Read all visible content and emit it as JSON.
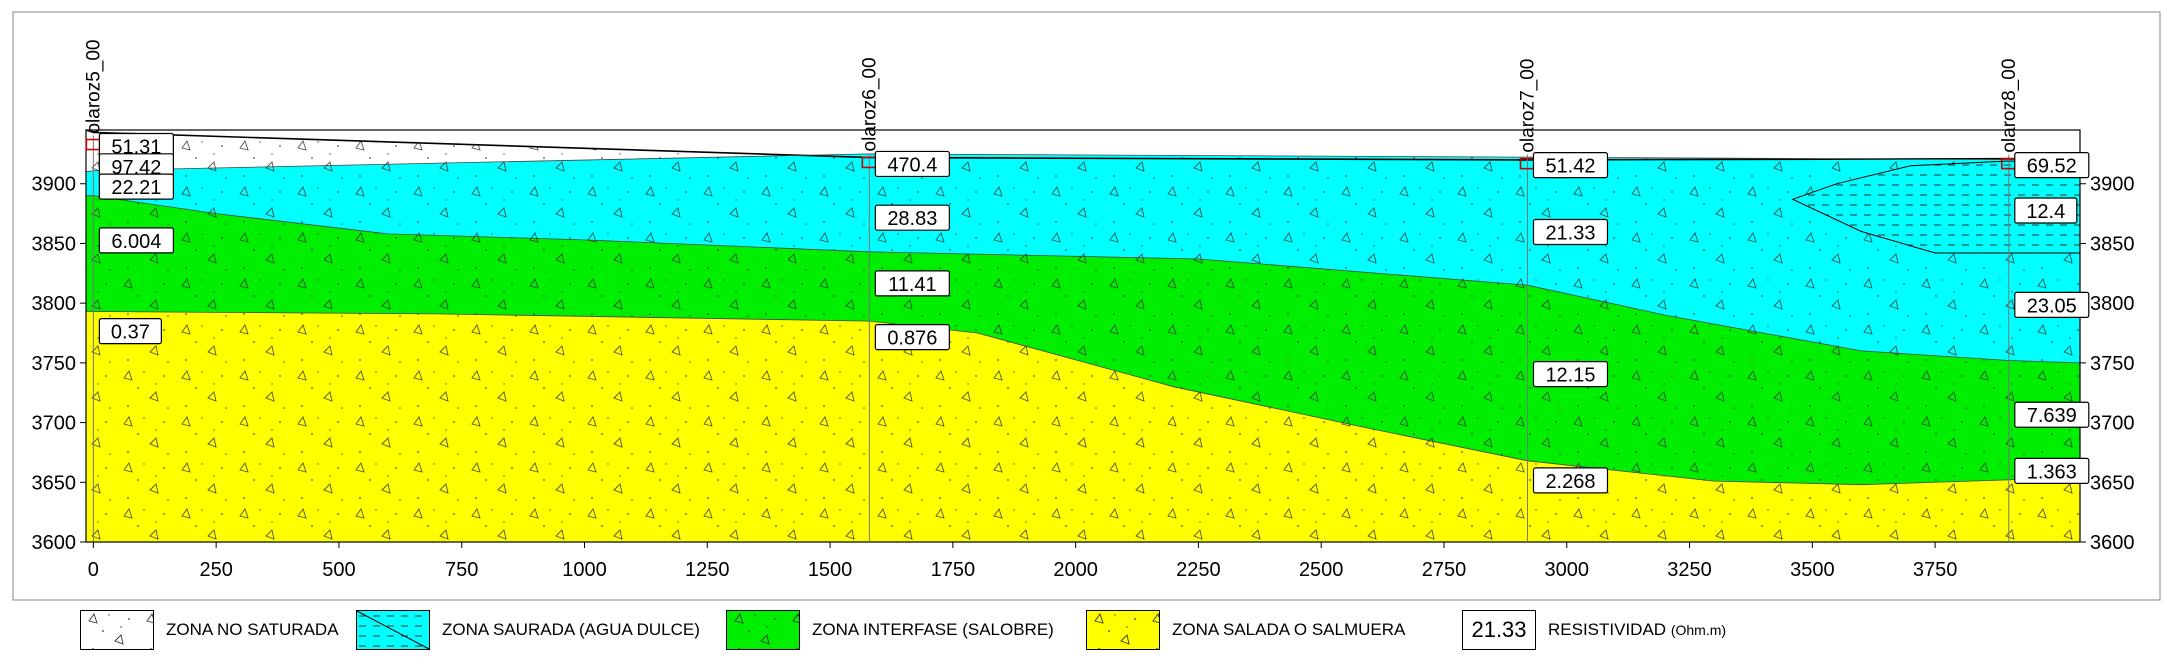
{
  "profile": {
    "y_axis": {
      "ticks": [
        3600,
        3650,
        3700,
        3750,
        3800,
        3850,
        3900
      ],
      "range": [
        3600,
        3945
      ]
    },
    "x_axis": {
      "ticks": [
        0,
        250,
        500,
        750,
        1000,
        1250,
        1500,
        1750,
        2000,
        2250,
        2500,
        2750,
        3000,
        3250,
        3500,
        3750
      ],
      "range": [
        -15,
        4045
      ]
    },
    "surface_profile": [
      [
        -15,
        3945
      ],
      [
        0,
        3943
      ],
      [
        1580,
        3922
      ],
      [
        2920,
        3920
      ],
      [
        3900,
        3921
      ],
      [
        4045,
        3920
      ]
    ],
    "boundary_unsat_fresh": [
      [
        -15,
        3910
      ],
      [
        0,
        3911
      ],
      [
        1580,
        3925
      ],
      [
        4045,
        3920
      ]
    ],
    "boundary_fresh_brackish": [
      [
        -15,
        3890
      ],
      [
        0,
        3890
      ],
      [
        250,
        3875
      ],
      [
        600,
        3858
      ],
      [
        1000,
        3853
      ],
      [
        1580,
        3843
      ],
      [
        2250,
        3837
      ],
      [
        2920,
        3815
      ],
      [
        3200,
        3790
      ],
      [
        3600,
        3760
      ],
      [
        3900,
        3752
      ],
      [
        4045,
        3750
      ]
    ],
    "boundary_brackish_saline": [
      [
        -15,
        3793
      ],
      [
        0,
        3793
      ],
      [
        700,
        3791
      ],
      [
        1580,
        3785
      ],
      [
        1800,
        3775
      ],
      [
        2200,
        3730
      ],
      [
        2600,
        3695
      ],
      [
        2920,
        3668
      ],
      [
        3300,
        3651
      ],
      [
        3600,
        3648
      ],
      [
        3900,
        3652
      ],
      [
        4045,
        3655
      ]
    ],
    "lens_outline": [
      [
        3460,
        3887
      ],
      [
        3550,
        3900
      ],
      [
        3700,
        3915
      ],
      [
        3900,
        3919
      ],
      [
        4045,
        3917
      ],
      [
        4045,
        3842
      ],
      [
        3900,
        3842
      ],
      [
        3750,
        3842
      ],
      [
        3600,
        3860
      ],
      [
        3460,
        3887
      ]
    ],
    "colors": {
      "unsaturated": "#ffffff",
      "fresh": "#00ffff",
      "brackish": "#00ee00",
      "saline": "#ffff00",
      "frame": "#000000",
      "label_border": "#000000",
      "sev_marker": "#cc0000"
    },
    "soundings": [
      {
        "name": "olaroz5_00",
        "x": 0,
        "labels": [
          {
            "text": "51.31",
            "elev": 3932
          },
          {
            "text": "97.42",
            "elev": 3915
          },
          {
            "text": "22.21",
            "elev": 3898
          },
          {
            "text": "6.004",
            "elev": 3853
          },
          {
            "text": "0.37",
            "elev": 3777
          }
        ]
      },
      {
        "name": "olaroz6_00",
        "x": 1580,
        "labels": [
          {
            "text": "470.4",
            "elev": 3917
          },
          {
            "text": "28.83",
            "elev": 3872
          },
          {
            "text": "11.41",
            "elev": 3817
          },
          {
            "text": "0.876",
            "elev": 3772
          }
        ]
      },
      {
        "name": "olaroz7_00",
        "x": 2920,
        "labels": [
          {
            "text": "51.42",
            "elev": 3916
          },
          {
            "text": "21.33",
            "elev": 3860
          },
          {
            "text": "12.15",
            "elev": 3741
          },
          {
            "text": "2.268",
            "elev": 3652
          }
        ]
      },
      {
        "name": "olaroz8_00",
        "x": 3900,
        "labels": [
          {
            "text": "69.52",
            "elev": 3916
          },
          {
            "text": "12.4",
            "elev": 3878
          },
          {
            "text": "23.05",
            "elev": 3799
          },
          {
            "text": "7.639",
            "elev": 3707
          },
          {
            "text": "1.363",
            "elev": 3660
          }
        ]
      }
    ]
  },
  "legend": {
    "unsaturated": "ZONA NO SATURADA",
    "fresh": "ZONA SAURADA (AGUA DULCE)",
    "brackish": "ZONA INTERFASE (SALOBRE)",
    "saline": "ZONA SALADA O SALMUERA",
    "resistivity_sample": "21.33",
    "resistivity_label": "RESISTIVIDAD",
    "resistivity_unit": "(Ohm.m)"
  }
}
